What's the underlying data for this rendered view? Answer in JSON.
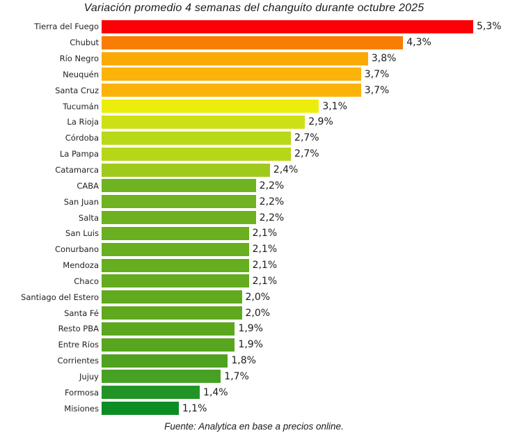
{
  "title": "Variación promedio 4 semanas del changuito durante octubre 2025",
  "footer": "Fuente: Analytica en base a precios online.",
  "chart_data": {
    "type": "bar",
    "orientation": "horizontal",
    "title": "Variación promedio 4 semanas del changuito durante octubre 2025",
    "source_note": "Fuente: Analytica en base a precios online.",
    "xlabel": "",
    "ylabel": "",
    "xlim": [
      0,
      5.3
    ],
    "grid": false,
    "legend": false,
    "value_format": "percent-comma-decimal",
    "categories": [
      "Tierra del Fuego",
      "Chubut",
      "Río Negro",
      "Neuquén",
      "Santa Cruz",
      "Tucumán",
      "La Rioja",
      "Córdoba",
      "La Pampa",
      "Catamarca",
      "CABA",
      "San Juan",
      "Salta",
      "San Luis",
      "Conurbano",
      "Mendoza",
      "Chaco",
      "Santiago del Estero",
      "Santa Fé",
      "Resto PBA",
      "Entre Ríos",
      "Corrientes",
      "Jujuy",
      "Formosa",
      "Misiones"
    ],
    "values": [
      5.3,
      4.3,
      3.8,
      3.7,
      3.7,
      3.1,
      2.9,
      2.7,
      2.7,
      2.4,
      2.2,
      2.2,
      2.2,
      2.1,
      2.1,
      2.1,
      2.1,
      2.0,
      2.0,
      1.9,
      1.9,
      1.8,
      1.7,
      1.4,
      1.1
    ],
    "value_labels": [
      "5,3%",
      "4,3%",
      "3,8%",
      "3,7%",
      "3,7%",
      "3,1%",
      "2,9%",
      "2,7%",
      "2,7%",
      "2,4%",
      "2,2%",
      "2,2%",
      "2,2%",
      "2,1%",
      "2,1%",
      "2,1%",
      "2,1%",
      "2,0%",
      "2,0%",
      "1,9%",
      "1,9%",
      "1,8%",
      "1,7%",
      "1,4%",
      "1,1%"
    ],
    "colors": [
      "#fb0007",
      "#f97d02",
      "#fbaa05",
      "#fbb309",
      "#fbb309",
      "#eded0d",
      "#cde013",
      "#b8d818",
      "#b6d717",
      "#9fca1c",
      "#70b322",
      "#6fb222",
      "#6db121",
      "#69af20",
      "#67ae20",
      "#66ad20",
      "#64ac1f",
      "#61aa1f",
      "#5fa91e",
      "#5ba71e",
      "#58a61d",
      "#4fa220",
      "#46a124",
      "#229427",
      "#0c8d24"
    ]
  }
}
